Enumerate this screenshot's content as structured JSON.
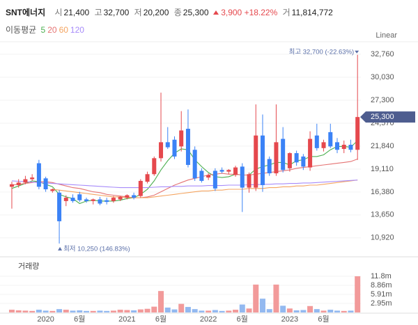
{
  "header": {
    "name": "SNT에너지",
    "quote": [
      {
        "label": "시",
        "value": "21,400"
      },
      {
        "label": "고",
        "value": "32,700"
      },
      {
        "label": "저",
        "value": "20,200"
      },
      {
        "label": "종",
        "value": "25,300"
      }
    ],
    "change": "3,900",
    "change_pct": "+18.22%",
    "volume_label": "거",
    "volume": "11,814,772"
  },
  "chart_data": {
    "type": "candlestick",
    "scale_label": "Linear",
    "volume_title": "거래량",
    "up_color": "#e5484d",
    "down_color": "#3b82f6",
    "volume_up_color": "#f29a9a",
    "volume_down_color": "#93b9f0",
    "grid": true,
    "categories": [
      null,
      null,
      null,
      null,
      null,
      "2020",
      null,
      null,
      null,
      null,
      "6월",
      null,
      null,
      null,
      null,
      null,
      null,
      "2021",
      null,
      null,
      null,
      null,
      "6월",
      null,
      null,
      null,
      null,
      null,
      null,
      "2022",
      null,
      null,
      null,
      null,
      "6월",
      null,
      null,
      null,
      null,
      null,
      null,
      "2023",
      null,
      null,
      null,
      null,
      "6월",
      null,
      null,
      null,
      null,
      null
    ],
    "open": [
      17000,
      17200,
      17500,
      17900,
      19800,
      18000,
      16500,
      16300,
      15300,
      15700,
      16100,
      15500,
      15300,
      15500,
      15400,
      15300,
      15500,
      15700,
      16000,
      15900,
      17600,
      18500,
      20400,
      22300,
      22600,
      21800,
      23900,
      21400,
      18900,
      18100,
      18900,
      19000,
      18800,
      18400,
      19400,
      16900,
      16900,
      23100,
      20300,
      18600,
      22700,
      19200,
      21000,
      20600,
      19300,
      23100,
      21600,
      23500,
      22300,
      21500,
      22000,
      21400
    ],
    "high": [
      17600,
      17900,
      18300,
      18500,
      20200,
      18200,
      16800,
      16600,
      16000,
      16100,
      16400,
      15700,
      15600,
      15800,
      15700,
      15900,
      15900,
      16100,
      16300,
      17900,
      18800,
      20600,
      28200,
      24100,
      23000,
      26000,
      26200,
      21800,
      19200,
      18600,
      19200,
      19300,
      19100,
      19500,
      19800,
      18700,
      26800,
      25600,
      20600,
      26800,
      24100,
      21100,
      21300,
      20900,
      23600,
      24500,
      22600,
      24500,
      22800,
      22500,
      22600,
      32700
    ],
    "low": [
      14400,
      16900,
      17300,
      17700,
      16700,
      16400,
      16300,
      10250,
      14700,
      15100,
      15200,
      15100,
      14900,
      14800,
      14900,
      15100,
      15300,
      15500,
      15500,
      15700,
      17400,
      18300,
      20000,
      21500,
      20300,
      21200,
      19300,
      17700,
      17500,
      17800,
      16500,
      18600,
      18500,
      18200,
      14000,
      16300,
      16500,
      16400,
      18300,
      18300,
      18700,
      18800,
      19500,
      19000,
      18900,
      21300,
      21200,
      21600,
      21000,
      21000,
      21100,
      20200
    ],
    "close": [
      17300,
      17500,
      17900,
      18100,
      17000,
      16700,
      16700,
      12900,
      15700,
      15300,
      15400,
      15300,
      15500,
      15000,
      15200,
      15700,
      15800,
      16000,
      15700,
      17700,
      18500,
      20400,
      22300,
      21700,
      20600,
      23700,
      19600,
      18000,
      17700,
      18400,
      16800,
      18800,
      19000,
      19300,
      16900,
      18500,
      23100,
      17200,
      18600,
      22300,
      19000,
      21000,
      19900,
      19400,
      22700,
      21600,
      22300,
      21800,
      21400,
      22000,
      21400,
      25300
    ],
    "volume": [
      900000,
      700000,
      600000,
      500000,
      900000,
      600000,
      500000,
      1100000,
      900000,
      600000,
      700000,
      500000,
      500000,
      600000,
      500000,
      600000,
      900000,
      800000,
      700000,
      1000000,
      1200000,
      1900000,
      7000000,
      1600000,
      1000000,
      2800000,
      1800000,
      1100000,
      600000,
      600000,
      800000,
      500000,
      600000,
      900000,
      2600000,
      1300000,
      9100000,
      4500000,
      1100000,
      9100000,
      2200000,
      1300000,
      700000,
      800000,
      2100000,
      1100000,
      600000,
      900000,
      600000,
      500000,
      600000,
      11814772
    ],
    "moving_averages": {
      "title": "이동평균",
      "series": [
        {
          "name": "5",
          "color": "#4caf50",
          "values": [
            16800,
            17100,
            17400,
            17700,
            17600,
            17300,
            17000,
            16100,
            15800,
            15600,
            15000,
            15300,
            15400,
            15300,
            15300,
            15300,
            15400,
            15600,
            15700,
            16100,
            16700,
            17700,
            19000,
            20100,
            21000,
            21500,
            21400,
            20200,
            19400,
            18700,
            18200,
            18100,
            18200,
            18500,
            18400,
            18400,
            19100,
            19400,
            19600,
            19900,
            19900,
            19600,
            20100,
            20200,
            20600,
            20600,
            20800,
            21400,
            21800,
            21800,
            21700,
            22500
          ]
        },
        {
          "name": "20",
          "color": "#e57373",
          "values": [
            17200,
            17300,
            17400,
            17500,
            17600,
            17600,
            17500,
            17300,
            17100,
            16900,
            16800,
            16600,
            16400,
            16300,
            16100,
            16000,
            15900,
            15800,
            15700,
            15700,
            15800,
            16000,
            16400,
            16800,
            17200,
            17500,
            17800,
            18000,
            18200,
            18400,
            18500,
            18600,
            18500,
            18500,
            18400,
            18400,
            18500,
            18600,
            18700,
            18800,
            18900,
            19000,
            19200,
            19300,
            19400,
            19500,
            19600,
            19700,
            19800,
            19900,
            20000,
            20300
          ]
        },
        {
          "name": "60",
          "color": "#f4a460",
          "values": [
            null,
            null,
            null,
            null,
            null,
            null,
            16700,
            16600,
            16500,
            16400,
            16300,
            16200,
            16100,
            16000,
            15900,
            15800,
            15800,
            15700,
            15700,
            15700,
            15700,
            15800,
            15900,
            16000,
            16100,
            16200,
            16300,
            16400,
            16500,
            16500,
            16600,
            16600,
            16700,
            16700,
            16700,
            16800,
            16800,
            16800,
            16900,
            16900,
            17000,
            17000,
            17100,
            17100,
            17200,
            17200,
            17300,
            17400,
            17500,
            17600,
            17700,
            17800
          ]
        },
        {
          "name": "120",
          "color": "#a78bfa",
          "values": [
            17700,
            17650,
            17600,
            17550,
            17500,
            17450,
            17400,
            17350,
            17300,
            17250,
            17200,
            17150,
            17100,
            17050,
            17000,
            16950,
            16900,
            16900,
            16900,
            16900,
            16900,
            16950,
            17000,
            17000,
            17050,
            17050,
            17100,
            17100,
            17100,
            17150,
            17150,
            17150,
            17200,
            17200,
            17200,
            17250,
            17250,
            17300,
            17300,
            17350,
            17350,
            17400,
            17400,
            17450,
            17450,
            17500,
            17550,
            17600,
            17650,
            17700,
            17750,
            17800
          ]
        }
      ]
    },
    "ylim": [
      9000,
      33840
    ],
    "yticks": [
      {
        "value": 10920,
        "label": "10,920"
      },
      {
        "value": 13650,
        "label": "13,650"
      },
      {
        "value": 16380,
        "label": "16,380"
      },
      {
        "value": 19110,
        "label": "19,110"
      },
      {
        "value": 21840,
        "label": "21,840"
      },
      {
        "value": 24570,
        "label": "24,570"
      },
      {
        "value": 27300,
        "label": "27,300"
      },
      {
        "value": 30030,
        "label": "30,030"
      },
      {
        "value": 32760,
        "label": "32,760"
      }
    ],
    "volume_ylim": [
      0,
      16800000
    ],
    "volume_yticks": [
      {
        "value": 2950000,
        "label": "2.95m"
      },
      {
        "value": 5910000,
        "label": "5.91m"
      },
      {
        "value": 8860000,
        "label": "8.86m"
      },
      {
        "value": 11800000,
        "label": "11.8m"
      }
    ],
    "last_price_label": "25,300",
    "annotations": {
      "high": "최고 32,700 (-22.63%)",
      "low": "최저 10,250 (146.83%)"
    }
  }
}
